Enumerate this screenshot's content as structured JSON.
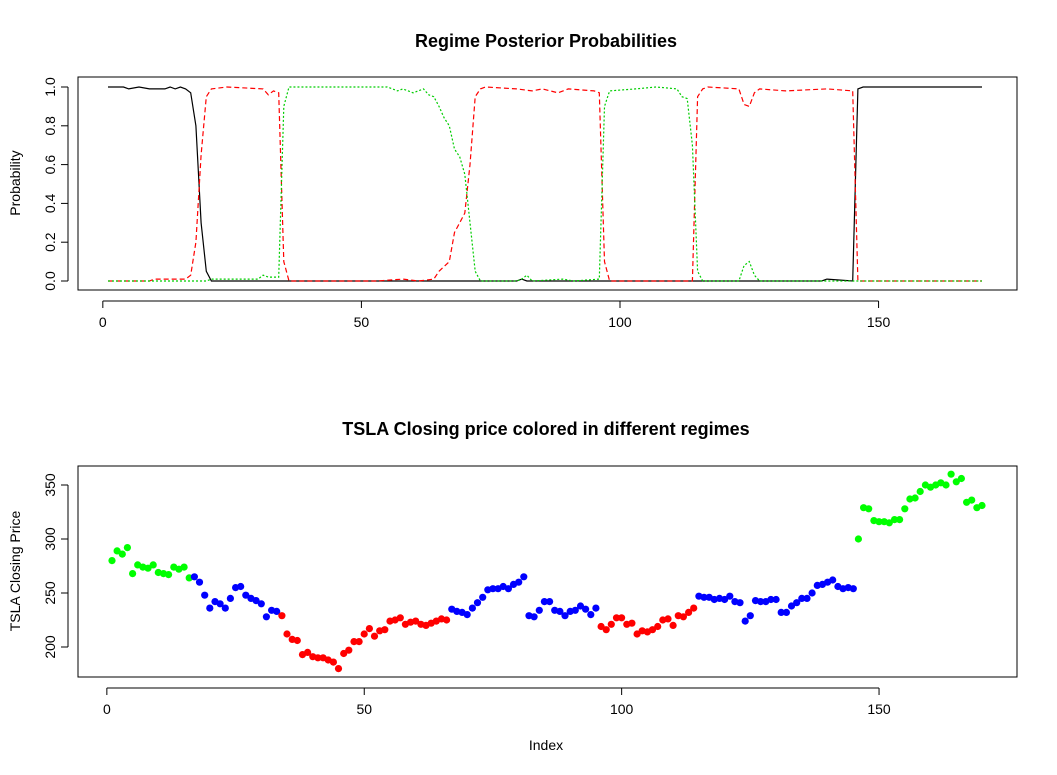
{
  "chart_data": [
    {
      "type": "line",
      "title": "Regime Posterior Probabilities",
      "xlabel": "",
      "ylabel": "Probability",
      "xlim": [
        1,
        170
      ],
      "ylim": [
        0,
        1
      ],
      "xticks": [
        0,
        50,
        100,
        150
      ],
      "yticks": [
        0.0,
        0.2,
        0.4,
        0.6,
        0.8,
        1.0
      ],
      "ytick_labels": [
        "0.0",
        "0.2",
        "0.4",
        "0.6",
        "0.8",
        "1.0"
      ],
      "grid": false,
      "series": [
        {
          "color": "#000000",
          "linestyle": "solid",
          "points": [
            [
              1,
              1.0
            ],
            [
              4,
              1.0
            ],
            [
              5,
              0.99
            ],
            [
              7,
              1.0
            ],
            [
              9,
              0.99
            ],
            [
              12,
              0.99
            ],
            [
              13,
              1.0
            ],
            [
              14,
              0.99
            ],
            [
              15,
              1.0
            ],
            [
              16,
              0.99
            ],
            [
              17,
              0.97
            ],
            [
              18,
              0.8
            ],
            [
              19,
              0.3
            ],
            [
              20,
              0.05
            ],
            [
              21,
              0.0
            ],
            [
              80,
              0.0
            ],
            [
              81,
              0.01
            ],
            [
              82,
              0.0
            ],
            [
              139,
              0.0
            ],
            [
              140,
              0.01
            ],
            [
              145,
              0.0
            ],
            [
              146,
              0.99
            ],
            [
              147,
              1.0
            ],
            [
              170,
              1.0
            ]
          ]
        },
        {
          "color": "#ff0000",
          "linestyle": "dashed",
          "points": [
            [
              1,
              0.0
            ],
            [
              9,
              0.0
            ],
            [
              10,
              0.01
            ],
            [
              16,
              0.01
            ],
            [
              17,
              0.03
            ],
            [
              18,
              0.2
            ],
            [
              19,
              0.65
            ],
            [
              20,
              0.95
            ],
            [
              21,
              0.99
            ],
            [
              24,
              1.0
            ],
            [
              31,
              0.99
            ],
            [
              32,
              0.96
            ],
            [
              33,
              0.98
            ],
            [
              34,
              0.97
            ],
            [
              35,
              0.1
            ],
            [
              36,
              0.0
            ],
            [
              53,
              0.0
            ],
            [
              58,
              0.01
            ],
            [
              61,
              0.0
            ],
            [
              64,
              0.01
            ],
            [
              65,
              0.05
            ],
            [
              67,
              0.1
            ],
            [
              68,
              0.25
            ],
            [
              69,
              0.3
            ],
            [
              70,
              0.35
            ],
            [
              71,
              0.6
            ],
            [
              72,
              0.95
            ],
            [
              73,
              0.99
            ],
            [
              74,
              1.0
            ],
            [
              80,
              0.99
            ],
            [
              83,
              0.98
            ],
            [
              85,
              0.99
            ],
            [
              88,
              0.97
            ],
            [
              90,
              0.99
            ],
            [
              95,
              0.98
            ],
            [
              96,
              0.97
            ],
            [
              97,
              0.1
            ],
            [
              98,
              0.0
            ],
            [
              114,
              0.0
            ],
            [
              115,
              0.95
            ],
            [
              116,
              0.99
            ],
            [
              117,
              1.0
            ],
            [
              123,
              0.99
            ],
            [
              124,
              0.91
            ],
            [
              125,
              0.9
            ],
            [
              126,
              0.97
            ],
            [
              127,
              0.99
            ],
            [
              132,
              0.98
            ],
            [
              140,
              0.99
            ],
            [
              145,
              0.98
            ],
            [
              146,
              0.0
            ],
            [
              170,
              0.0
            ]
          ]
        },
        {
          "color": "#00cd00",
          "linestyle": "dotted",
          "points": [
            [
              1,
              0.0
            ],
            [
              20,
              0.0
            ],
            [
              21,
              0.01
            ],
            [
              30,
              0.01
            ],
            [
              31,
              0.03
            ],
            [
              32,
              0.02
            ],
            [
              34,
              0.02
            ],
            [
              35,
              0.9
            ],
            [
              36,
              1.0
            ],
            [
              55,
              1.0
            ],
            [
              56,
              0.99
            ],
            [
              57,
              0.98
            ],
            [
              58,
              0.99
            ],
            [
              60,
              0.97
            ],
            [
              62,
              0.99
            ],
            [
              63,
              0.96
            ],
            [
              64,
              0.95
            ],
            [
              65,
              0.9
            ],
            [
              66,
              0.84
            ],
            [
              67,
              0.8
            ],
            [
              68,
              0.68
            ],
            [
              69,
              0.64
            ],
            [
              70,
              0.55
            ],
            [
              71,
              0.3
            ],
            [
              72,
              0.05
            ],
            [
              73,
              0.0
            ],
            [
              80,
              0.0
            ],
            [
              81,
              0.01
            ],
            [
              82,
              0.03
            ],
            [
              83,
              0.0
            ],
            [
              89,
              0.01
            ],
            [
              91,
              0.0
            ],
            [
              96,
              0.01
            ],
            [
              97,
              0.9
            ],
            [
              98,
              0.98
            ],
            [
              103,
              0.99
            ],
            [
              107,
              1.0
            ],
            [
              111,
              0.99
            ],
            [
              112,
              0.95
            ],
            [
              113,
              0.94
            ],
            [
              114,
              0.7
            ],
            [
              115,
              0.05
            ],
            [
              116,
              0.0
            ],
            [
              123,
              0.0
            ],
            [
              124,
              0.08
            ],
            [
              125,
              0.1
            ],
            [
              126,
              0.03
            ],
            [
              127,
              0.0
            ],
            [
              170,
              0.0
            ]
          ]
        }
      ]
    },
    {
      "type": "scatter",
      "title": "TSLA Closing price colored in different regimes",
      "xlabel": "Index",
      "ylabel": "TSLA Closing Price",
      "xlim": [
        1,
        170
      ],
      "ylim": [
        180,
        360
      ],
      "xticks": [
        0,
        50,
        100,
        150
      ],
      "yticks": [
        200,
        250,
        300,
        350
      ],
      "grid": false,
      "values": [
        280,
        289,
        286,
        292,
        268,
        276,
        274,
        273,
        276,
        269,
        268,
        267,
        274,
        272,
        274,
        264,
        265,
        260,
        248,
        236,
        242,
        240,
        236,
        245,
        255,
        256,
        248,
        245,
        243,
        240,
        228,
        234,
        233,
        229,
        212,
        207,
        206,
        193,
        195,
        191,
        190,
        190,
        188,
        186,
        180,
        194,
        197,
        205,
        205,
        212,
        217,
        210,
        215,
        216,
        224,
        225,
        227,
        221,
        223,
        224,
        221,
        220,
        222,
        224,
        226,
        225,
        235,
        233,
        232,
        230,
        236,
        241,
        246,
        253,
        254,
        254,
        256,
        254,
        258,
        260,
        265,
        229,
        228,
        234,
        242,
        242,
        234,
        233,
        229,
        233,
        234,
        238,
        235,
        230,
        236,
        219,
        216,
        221,
        227,
        227,
        221,
        222,
        212,
        215,
        214,
        216,
        219,
        225,
        226,
        220,
        229,
        228,
        232,
        236,
        247,
        246,
        246,
        244,
        245,
        244,
        247,
        242,
        241,
        224,
        229,
        243,
        242,
        242,
        244,
        244,
        232,
        232,
        238,
        241,
        245,
        245,
        250,
        257,
        258,
        260,
        262,
        256,
        254,
        255,
        254,
        300,
        329,
        328,
        317,
        316,
        316,
        315,
        318,
        318,
        328,
        337,
        338,
        344,
        350,
        348,
        350,
        352,
        350,
        360,
        353,
        356,
        334,
        336,
        329,
        331
      ],
      "regimes": [
        "g",
        "g",
        "g",
        "g",
        "g",
        "g",
        "g",
        "g",
        "g",
        "g",
        "g",
        "g",
        "g",
        "g",
        "g",
        "g",
        "b",
        "b",
        "b",
        "b",
        "b",
        "b",
        "b",
        "b",
        "b",
        "b",
        "b",
        "b",
        "b",
        "b",
        "b",
        "b",
        "b",
        "r",
        "r",
        "r",
        "r",
        "r",
        "r",
        "r",
        "r",
        "r",
        "r",
        "r",
        "r",
        "r",
        "r",
        "r",
        "r",
        "r",
        "r",
        "r",
        "r",
        "r",
        "r",
        "r",
        "r",
        "r",
        "r",
        "r",
        "r",
        "r",
        "r",
        "r",
        "r",
        "r",
        "b",
        "b",
        "b",
        "b",
        "b",
        "b",
        "b",
        "b",
        "b",
        "b",
        "b",
        "b",
        "b",
        "b",
        "b",
        "b",
        "b",
        "b",
        "b",
        "b",
        "b",
        "b",
        "b",
        "b",
        "b",
        "b",
        "b",
        "b",
        "b",
        "r",
        "r",
        "r",
        "r",
        "r",
        "r",
        "r",
        "r",
        "r",
        "r",
        "r",
        "r",
        "r",
        "r",
        "r",
        "r",
        "r",
        "r",
        "r",
        "b",
        "b",
        "b",
        "b",
        "b",
        "b",
        "b",
        "b",
        "b",
        "b",
        "b",
        "b",
        "b",
        "b",
        "b",
        "b",
        "b",
        "b",
        "b",
        "b",
        "b",
        "b",
        "b",
        "b",
        "b",
        "b",
        "b",
        "b",
        "b",
        "b",
        "b",
        "g",
        "g",
        "g",
        "g",
        "g",
        "g",
        "g",
        "g",
        "g",
        "g",
        "g",
        "g",
        "g",
        "g",
        "g",
        "g",
        "g",
        "g",
        "g",
        "g",
        "g",
        "g",
        "g",
        "g",
        "g"
      ],
      "regime_colors": {
        "r": "#ff0000",
        "g": "#00ff00",
        "b": "#0000ff"
      }
    }
  ]
}
